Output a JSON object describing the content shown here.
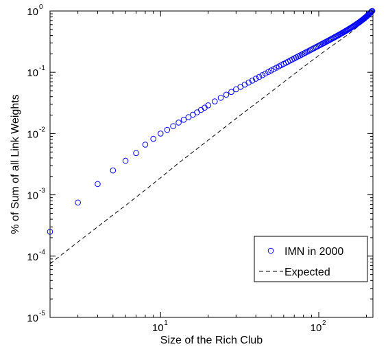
{
  "chart_data": {
    "type": "scatter",
    "xlabel": "Size of the Rich Club",
    "ylabel": "% of Sum of all Link Weights",
    "x_scale": "log",
    "y_scale": "log",
    "xlim": [
      2,
      220
    ],
    "ylim": [
      1e-05,
      1
    ],
    "x_ticks": [
      {
        "value": 10,
        "base": "10",
        "exp": "1"
      },
      {
        "value": 100,
        "base": "10",
        "exp": "2"
      }
    ],
    "y_ticks": [
      {
        "value": 1,
        "base": "10",
        "exp": "0"
      },
      {
        "value": 0.1,
        "base": "10",
        "exp": "-1"
      },
      {
        "value": 0.01,
        "base": "10",
        "exp": "-2"
      },
      {
        "value": 0.001,
        "base": "10",
        "exp": "-3"
      },
      {
        "value": 0.0001,
        "base": "10",
        "exp": "-4"
      },
      {
        "value": 1e-05,
        "base": "10",
        "exp": "-5"
      }
    ],
    "grid": false,
    "legend_position": "bottom-right",
    "series": [
      {
        "name": "IMN in 2000",
        "style": "circle-markers",
        "color": "#0000ff",
        "x": [
          2,
          3,
          4,
          5,
          6,
          7,
          8,
          9,
          10,
          11,
          12,
          13,
          14,
          15,
          16,
          17,
          18,
          19,
          20,
          22,
          24,
          26,
          28,
          30,
          32,
          34,
          36,
          38,
          40,
          42,
          44,
          46,
          48,
          50,
          52,
          54,
          56,
          58,
          60,
          62,
          64,
          66,
          68,
          70,
          72,
          74,
          76,
          78,
          80,
          82,
          84,
          86,
          88,
          90,
          92,
          94,
          96,
          98,
          100,
          102,
          104,
          106,
          108,
          110,
          112,
          114,
          116,
          118,
          120,
          122,
          124,
          126,
          128,
          130,
          132,
          134,
          136,
          138,
          140,
          142,
          144,
          146,
          148,
          150,
          152,
          154,
          156,
          158,
          160,
          162,
          164,
          166,
          168,
          170,
          172,
          174,
          176,
          178,
          180,
          182,
          184,
          186,
          188,
          190,
          192,
          194,
          196,
          198,
          200,
          202,
          204,
          206,
          208,
          210,
          212,
          214,
          216,
          218
        ],
        "y": [
          0.00025,
          0.00075,
          0.0015,
          0.0025,
          0.0036,
          0.0048,
          0.0066,
          0.0082,
          0.01,
          0.0115,
          0.0132,
          0.0151,
          0.0168,
          0.0185,
          0.0203,
          0.0222,
          0.0243,
          0.0265,
          0.0289,
          0.0335,
          0.0383,
          0.0431,
          0.0478,
          0.0528,
          0.0578,
          0.0628,
          0.0679,
          0.0732,
          0.0786,
          0.0841,
          0.0897,
          0.0954,
          0.1012,
          0.107,
          0.1129,
          0.1189,
          0.1249,
          0.1309,
          0.137,
          0.1431,
          0.1493,
          0.1556,
          0.1619,
          0.1683,
          0.1747,
          0.1812,
          0.1878,
          0.1944,
          0.2011,
          0.2079,
          0.2147,
          0.2216,
          0.2286,
          0.2356,
          0.2427,
          0.2498,
          0.257,
          0.2643,
          0.2716,
          0.279,
          0.2865,
          0.294,
          0.3016,
          0.3093,
          0.317,
          0.3248,
          0.3327,
          0.3406,
          0.3487,
          0.3568,
          0.365,
          0.3733,
          0.3817,
          0.3902,
          0.3988,
          0.4075,
          0.4163,
          0.4252,
          0.4343,
          0.4435,
          0.4528,
          0.4623,
          0.4719,
          0.4817,
          0.4916,
          0.5017,
          0.512,
          0.5225,
          0.5332,
          0.5441,
          0.5552,
          0.5666,
          0.5782,
          0.59,
          0.6021,
          0.6145,
          0.6271,
          0.64,
          0.6533,
          0.6669,
          0.6809,
          0.6952,
          0.71,
          0.7252,
          0.7409,
          0.7571,
          0.7739,
          0.7913,
          0.8094,
          0.8282,
          0.8478,
          0.8683,
          0.8898,
          0.9124,
          0.9362,
          0.9613,
          0.9879,
          1.0
        ]
      },
      {
        "name": "Expected",
        "style": "dashed-line",
        "color": "#000000",
        "x": [
          2,
          3,
          4,
          5,
          6,
          8,
          10,
          13,
          16,
          20,
          25,
          32,
          40,
          50,
          63,
          80,
          100,
          120,
          140,
          160,
          180,
          200,
          210,
          218
        ],
        "y": [
          7.5e-05,
          0.00017,
          0.0003,
          0.00047,
          0.00067,
          0.0012,
          0.0019,
          0.0033,
          0.005,
          0.0078,
          0.0122,
          0.02,
          0.031,
          0.048,
          0.076,
          0.122,
          0.188,
          0.265,
          0.35,
          0.45,
          0.58,
          0.75,
          0.86,
          0.97
        ]
      }
    ]
  }
}
